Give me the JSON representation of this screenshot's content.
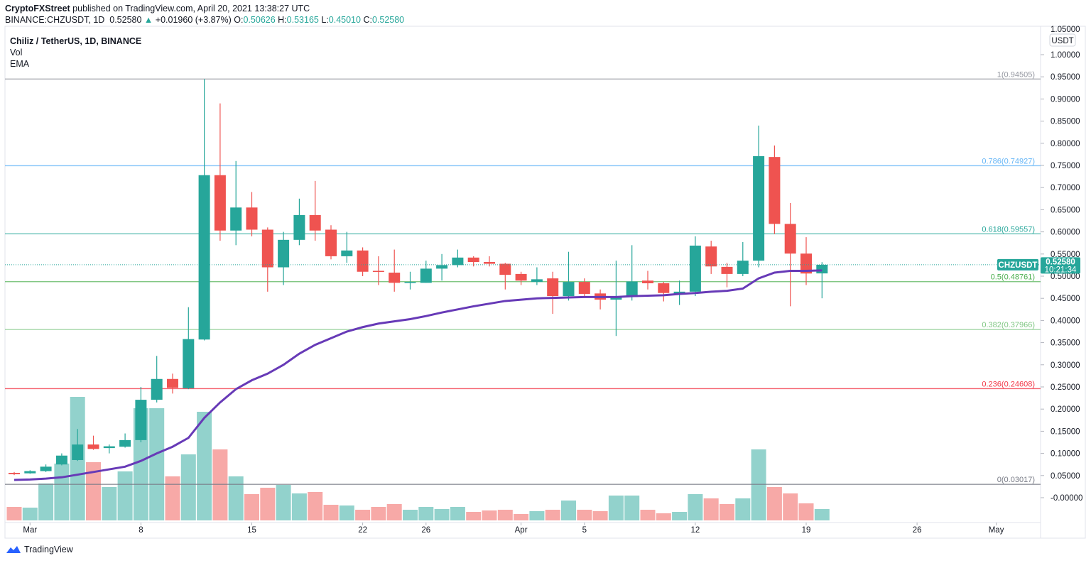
{
  "header": {
    "publisher": "CryptoFXStreet",
    "published_text": "published on TradingView.com, April 20, 2021 13:38:27 UTC",
    "symbol": "BINANCE:CHZUSDT, 1D",
    "last": "0.52580",
    "change": "+0.01960 (+3.87%)",
    "o_label": "O:",
    "o": "0.50626",
    "h_label": "H:",
    "h": "0.53165",
    "l_label": "L:",
    "l": "0.45010",
    "c_label": "C:",
    "c": "0.52580"
  },
  "legend": {
    "title": "Chiliz / TetherUS, 1D, BINANCE",
    "vol": "Vol",
    "ema": "EMA"
  },
  "footer": {
    "brand": "TradingView"
  },
  "colors": {
    "up": "#26a69a",
    "down": "#ef5350",
    "ema": "#673ab7"
  },
  "chart_data": {
    "type": "candlestick",
    "title": "Chiliz / TetherUS, 1D, BINANCE",
    "currency_label": "USDT",
    "ylim": [
      -0.01,
      1.05
    ],
    "y_ticks": [
      "1.05000",
      "1.00000",
      "0.95000",
      "0.90000",
      "0.85000",
      "0.80000",
      "0.75000",
      "0.70000",
      "0.65000",
      "0.60000",
      "0.55000",
      "0.50000",
      "0.45000",
      "0.40000",
      "0.35000",
      "0.30000",
      "0.25000",
      "0.20000",
      "0.15000",
      "0.10000",
      "0.05000",
      "-0.00000"
    ],
    "y_tick_values": [
      1.05,
      1.0,
      0.95,
      0.9,
      0.85,
      0.8,
      0.75,
      0.7,
      0.65,
      0.6,
      0.55,
      0.5,
      0.45,
      0.4,
      0.35,
      0.3,
      0.25,
      0.2,
      0.15,
      0.1,
      0.05,
      0.0
    ],
    "x_ticks": [
      {
        "label": "Mar",
        "day": 1
      },
      {
        "label": "8",
        "day": 8
      },
      {
        "label": "15",
        "day": 15
      },
      {
        "label": "22",
        "day": 22
      },
      {
        "label": "26",
        "day": 26
      },
      {
        "label": "Apr",
        "day": 32
      },
      {
        "label": "5",
        "day": 36
      },
      {
        "label": "12",
        "day": 43
      },
      {
        "label": "19",
        "day": 50
      },
      {
        "label": "26",
        "day": 57
      },
      {
        "label": "May",
        "day": 62
      }
    ],
    "dates": [
      "Feb 28",
      "Mar 1",
      "Mar 2",
      "Mar 3",
      "Mar 4",
      "Mar 5",
      "Mar 6",
      "Mar 7",
      "Mar 8",
      "Mar 9",
      "Mar 10",
      "Mar 11",
      "Mar 12",
      "Mar 13",
      "Mar 14",
      "Mar 15",
      "Mar 16",
      "Mar 17",
      "Mar 18",
      "Mar 19",
      "Mar 20",
      "Mar 21",
      "Mar 22",
      "Mar 23",
      "Mar 24",
      "Mar 25",
      "Mar 26",
      "Mar 27",
      "Mar 28",
      "Mar 29",
      "Mar 30",
      "Mar 31",
      "Apr 1",
      "Apr 2",
      "Apr 3",
      "Apr 4",
      "Apr 5",
      "Apr 6",
      "Apr 7",
      "Apr 8",
      "Apr 9",
      "Apr 10",
      "Apr 11",
      "Apr 12",
      "Apr 13",
      "Apr 14",
      "Apr 15",
      "Apr 16",
      "Apr 17",
      "Apr 18",
      "Apr 19",
      "Apr 20"
    ],
    "ohlc": [
      [
        0.056,
        0.058,
        0.051,
        0.053
      ],
      [
        0.055,
        0.062,
        0.054,
        0.06
      ],
      [
        0.06,
        0.075,
        0.058,
        0.07
      ],
      [
        0.075,
        0.1,
        0.073,
        0.095
      ],
      [
        0.085,
        0.155,
        0.083,
        0.12
      ],
      [
        0.12,
        0.14,
        0.108,
        0.11
      ],
      [
        0.112,
        0.12,
        0.1,
        0.116
      ],
      [
        0.115,
        0.145,
        0.113,
        0.13
      ],
      [
        0.13,
        0.25,
        0.125,
        0.221
      ],
      [
        0.221,
        0.32,
        0.215,
        0.268
      ],
      [
        0.268,
        0.28,
        0.235,
        0.248
      ],
      [
        0.247,
        0.43,
        0.245,
        0.358
      ],
      [
        0.357,
        0.945,
        0.355,
        0.728
      ],
      [
        0.728,
        0.89,
        0.58,
        0.603
      ],
      [
        0.603,
        0.76,
        0.57,
        0.655
      ],
      [
        0.655,
        0.69,
        0.59,
        0.605
      ],
      [
        0.605,
        0.61,
        0.465,
        0.52
      ],
      [
        0.52,
        0.6,
        0.48,
        0.582
      ],
      [
        0.582,
        0.675,
        0.57,
        0.638
      ],
      [
        0.638,
        0.715,
        0.58,
        0.603
      ],
      [
        0.605,
        0.615,
        0.538,
        0.545
      ],
      [
        0.545,
        0.6,
        0.53,
        0.558
      ],
      [
        0.558,
        0.565,
        0.5,
        0.51
      ],
      [
        0.512,
        0.545,
        0.48,
        0.51
      ],
      [
        0.508,
        0.56,
        0.465,
        0.485
      ],
      [
        0.485,
        0.51,
        0.47,
        0.487
      ],
      [
        0.485,
        0.535,
        0.485,
        0.517
      ],
      [
        0.517,
        0.55,
        0.49,
        0.525
      ],
      [
        0.525,
        0.56,
        0.52,
        0.542
      ],
      [
        0.542,
        0.545,
        0.522,
        0.532
      ],
      [
        0.532,
        0.545,
        0.522,
        0.528
      ],
      [
        0.528,
        0.53,
        0.47,
        0.503
      ],
      [
        0.505,
        0.51,
        0.48,
        0.49
      ],
      [
        0.487,
        0.52,
        0.48,
        0.493
      ],
      [
        0.495,
        0.51,
        0.415,
        0.455
      ],
      [
        0.455,
        0.555,
        0.445,
        0.487
      ],
      [
        0.487,
        0.495,
        0.455,
        0.46
      ],
      [
        0.461,
        0.47,
        0.425,
        0.447
      ],
      [
        0.447,
        0.535,
        0.365,
        0.453
      ],
      [
        0.453,
        0.57,
        0.445,
        0.488
      ],
      [
        0.49,
        0.512,
        0.47,
        0.484
      ],
      [
        0.484,
        0.487,
        0.443,
        0.462
      ],
      [
        0.46,
        0.49,
        0.435,
        0.465
      ],
      [
        0.465,
        0.59,
        0.455,
        0.569
      ],
      [
        0.567,
        0.58,
        0.505,
        0.522
      ],
      [
        0.521,
        0.53,
        0.475,
        0.505
      ],
      [
        0.505,
        0.577,
        0.5,
        0.535
      ],
      [
        0.535,
        0.84,
        0.52,
        0.771
      ],
      [
        0.769,
        0.795,
        0.595,
        0.618
      ],
      [
        0.618,
        0.665,
        0.432,
        0.551
      ],
      [
        0.551,
        0.588,
        0.48,
        0.506
      ],
      [
        0.50626,
        0.53165,
        0.4501,
        0.5258
      ]
    ],
    "volume_relative": [
      19,
      18,
      52,
      80,
      174,
      82,
      47,
      69,
      158,
      158,
      62,
      93,
      153,
      100,
      62,
      37,
      46,
      50,
      38,
      40,
      22,
      21,
      15,
      19,
      23,
      15,
      19,
      16,
      19,
      12,
      14,
      15,
      9,
      13,
      15,
      28,
      15,
      13,
      35,
      35,
      15,
      10,
      12,
      37,
      31,
      23,
      31,
      100,
      47,
      38,
      24,
      16
    ],
    "ema": [
      0.04,
      0.041,
      0.043,
      0.046,
      0.052,
      0.058,
      0.064,
      0.07,
      0.083,
      0.1,
      0.115,
      0.135,
      0.18,
      0.215,
      0.245,
      0.265,
      0.28,
      0.3,
      0.325,
      0.345,
      0.36,
      0.375,
      0.385,
      0.393,
      0.398,
      0.403,
      0.41,
      0.418,
      0.425,
      0.432,
      0.438,
      0.444,
      0.447,
      0.45,
      0.451,
      0.452,
      0.453,
      0.453,
      0.453,
      0.455,
      0.456,
      0.457,
      0.46,
      0.462,
      0.465,
      0.467,
      0.472,
      0.495,
      0.508,
      0.512,
      0.512,
      0.513
    ],
    "fib_levels": [
      {
        "label": "1(0.94505)",
        "value": 0.94505,
        "color": "#9598a1"
      },
      {
        "label": "0.786(0.74927)",
        "value": 0.74927,
        "color": "#64b5f6"
      },
      {
        "label": "0.618(0.59557)",
        "value": 0.59557,
        "color": "#26a69a"
      },
      {
        "label": "0.5(0.48761)",
        "value": 0.48761,
        "color": "#4caf50"
      },
      {
        "label": "0.382(0.37966)",
        "value": 0.37966,
        "color": "#81c784"
      },
      {
        "label": "0.236(0.24608)",
        "value": 0.24608,
        "color": "#f23645"
      },
      {
        "label": "0(0.03017)",
        "value": 0.03017,
        "color": "#787b86"
      }
    ],
    "last_price": {
      "symbol": "CHZUSDT",
      "value": 0.5258,
      "price_text": "0.52580",
      "countdown": "10:21:34"
    }
  }
}
